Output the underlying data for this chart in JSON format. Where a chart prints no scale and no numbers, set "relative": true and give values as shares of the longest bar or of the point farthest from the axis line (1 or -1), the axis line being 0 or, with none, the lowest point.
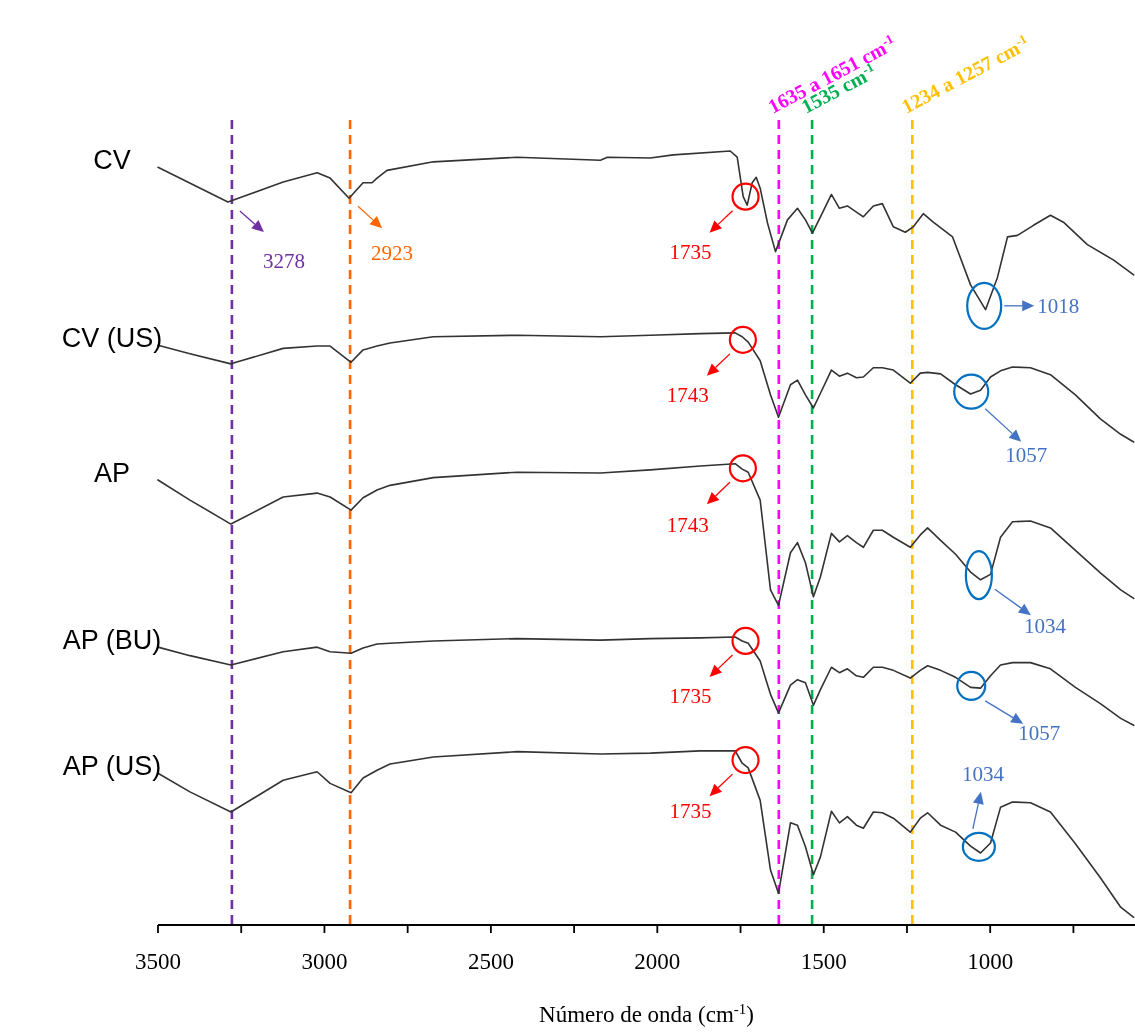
{
  "chart_data": {
    "type": "line",
    "relative": true,
    "xlabel": "Número de onda (cm$^{-1}$)",
    "xlim": [
      3500,
      565
    ],
    "xticks": [
      3500,
      {
        "value": 3250,
        "label": null
      },
      3000,
      {
        "value": 2750,
        "label": null
      },
      2500,
      {
        "value": 2250,
        "label": null
      },
      2000,
      {
        "value": 1750,
        "label": null
      },
      1500,
      {
        "value": 1250,
        "label": null
      },
      1000,
      {
        "value": 750,
        "label": null
      }
    ],
    "x": [
      3500,
      3404,
      3281,
      3124,
      3022,
      2983,
      2920,
      2884,
      2842,
      2803,
      2673,
      2421,
      2171,
      2021,
      1871,
      1766,
      1745,
      1727,
      1691,
      1660,
      1636,
      1600,
      1579,
      1555,
      1531,
      1510,
      1477,
      1453,
      1429,
      1402,
      1381,
      1351,
      1324,
      1291,
      1240,
      1210,
      1188,
      1149,
      1104,
      1059,
      1029,
      999,
      969,
      933,
      879,
      819,
      744,
      669,
      608,
      569
    ],
    "series": [
      {
        "name": "CV",
        "color": "#333333",
        "x": [
          3500,
          3290,
          3124,
          3022,
          2983,
          2926,
          2884,
          2857,
          2842,
          2812,
          2673,
          2421,
          2171,
          2150,
          2021,
          1952,
          1781,
          1760,
          1742,
          1730,
          1715,
          1703,
          1691,
          1669,
          1645,
          1609,
          1579,
          1555,
          1534,
          1510,
          1477,
          1453,
          1429,
          1381,
          1351,
          1324,
          1291,
          1255,
          1231,
          1201,
          1171,
          1113,
          1059,
          1014,
          978,
          948,
          918,
          870,
          819,
          780,
          708,
          629,
          569
        ],
        "values": [
          0.979,
          0.934,
          0.96,
          0.972,
          0.965,
          0.939,
          0.959,
          0.959,
          0.965,
          0.975,
          0.986,
          0.992,
          0.988,
          0.992,
          0.991,
          0.995,
          1.0,
          0.992,
          0.941,
          0.93,
          0.959,
          0.966,
          0.952,
          0.907,
          0.87,
          0.911,
          0.926,
          0.911,
          0.894,
          0.915,
          0.944,
          0.926,
          0.929,
          0.915,
          0.929,
          0.932,
          0.902,
          0.895,
          0.902,
          0.919,
          0.908,
          0.889,
          0.827,
          0.795,
          0.837,
          0.889,
          0.891,
          0.904,
          0.917,
          0.908,
          0.879,
          0.859,
          0.84
        ]
      },
      {
        "name": "CV (US)",
        "color": "#333333",
        "values": [
          0.749,
          0.738,
          0.725,
          0.745,
          0.748,
          0.748,
          0.727,
          0.743,
          0.748,
          0.752,
          0.76,
          0.762,
          0.76,
          0.762,
          0.764,
          0.765,
          0.76,
          0.753,
          0.729,
          0.685,
          0.656,
          0.698,
          0.704,
          0.685,
          0.668,
          0.687,
          0.717,
          0.709,
          0.713,
          0.707,
          0.708,
          0.72,
          0.72,
          0.717,
          0.7,
          0.713,
          0.714,
          0.712,
          0.698,
          0.686,
          0.691,
          0.708,
          0.716,
          0.721,
          0.72,
          0.711,
          0.685,
          0.654,
          0.634,
          0.624
        ]
      },
      {
        "name": "AP",
        "color": "#333333",
        "values": [
          0.575,
          0.549,
          0.518,
          0.553,
          0.558,
          0.553,
          0.536,
          0.552,
          0.562,
          0.568,
          0.578,
          0.585,
          0.584,
          0.588,
          0.593,
          0.596,
          0.589,
          0.585,
          0.549,
          0.433,
          0.413,
          0.481,
          0.494,
          0.468,
          0.424,
          0.45,
          0.506,
          0.495,
          0.503,
          0.494,
          0.488,
          0.51,
          0.51,
          0.501,
          0.488,
          0.504,
          0.513,
          0.497,
          0.479,
          0.456,
          0.446,
          0.453,
          0.501,
          0.521,
          0.522,
          0.513,
          0.484,
          0.455,
          0.433,
          0.422
        ]
      },
      {
        "name": "AP (BU)",
        "color": "#333333",
        "values": [
          0.359,
          0.348,
          0.336,
          0.353,
          0.359,
          0.353,
          0.351,
          0.358,
          0.363,
          0.364,
          0.367,
          0.37,
          0.368,
          0.37,
          0.371,
          0.372,
          0.367,
          0.364,
          0.341,
          0.298,
          0.274,
          0.31,
          0.317,
          0.313,
          0.284,
          0.304,
          0.333,
          0.326,
          0.331,
          0.322,
          0.32,
          0.333,
          0.333,
          0.329,
          0.319,
          0.329,
          0.335,
          0.329,
          0.32,
          0.307,
          0.306,
          0.322,
          0.336,
          0.339,
          0.339,
          0.331,
          0.307,
          0.286,
          0.267,
          0.258
        ]
      },
      {
        "name": "AP (US)",
        "color": "#333333",
        "values": [
          0.196,
          0.172,
          0.146,
          0.187,
          0.198,
          0.183,
          0.171,
          0.19,
          0.2,
          0.208,
          0.217,
          0.224,
          0.221,
          0.222,
          0.225,
          0.225,
          0.209,
          0.203,
          0.161,
          0.071,
          0.041,
          0.132,
          0.129,
          0.101,
          0.065,
          0.088,
          0.147,
          0.132,
          0.14,
          0.129,
          0.125,
          0.146,
          0.145,
          0.138,
          0.12,
          0.138,
          0.145,
          0.129,
          0.12,
          0.102,
          0.093,
          0.106,
          0.152,
          0.159,
          0.158,
          0.146,
          0.105,
          0.061,
          0.023,
          0.01
        ]
      }
    ],
    "ref_lines": [
      {
        "axis": "x",
        "value": 3278,
        "color": "#7030a0",
        "line_style": "dashed"
      },
      {
        "axis": "x",
        "value": 2923,
        "color": "#ff6600",
        "line_style": "dashed"
      },
      {
        "axis": "x",
        "value": 1635,
        "label": "1635 a 1651 cm$^{-1}$",
        "color": "#ff00ff",
        "line_style": "dashed"
      },
      {
        "axis": "x",
        "value": 1535,
        "label": "1535 cm$^{-1}$",
        "color": "#00b050",
        "line_style": "dashed"
      },
      {
        "axis": "x",
        "value": 1234,
        "label": "1234 a 1257 cm$^{-1}$",
        "color": "#ffc000",
        "line_style": "dashed"
      }
    ],
    "annotations": [
      {
        "text": "3278",
        "x": 3278,
        "y": 0.934
      },
      {
        "text": "2923",
        "x": 2923,
        "y": 0.939
      },
      {
        "text": "1735",
        "x": 1735,
        "y": 0.941
      },
      {
        "text": "1018",
        "x": 1018,
        "y": 0.8
      },
      {
        "text": "1743",
        "x": 1743,
        "y": 0.756
      },
      {
        "text": "1057",
        "x": 1057,
        "y": 0.689
      },
      {
        "text": "1743",
        "x": 1743,
        "y": 0.59
      },
      {
        "text": "1034",
        "x": 1034,
        "y": 0.452
      },
      {
        "text": "1735",
        "x": 1735,
        "y": 0.367
      },
      {
        "text": "1057",
        "x": 1057,
        "y": 0.309
      },
      {
        "text": "1735",
        "x": 1735,
        "y": 0.213
      },
      {
        "text": "1034",
        "x": 1034,
        "y": 0.101
      }
    ]
  }
}
